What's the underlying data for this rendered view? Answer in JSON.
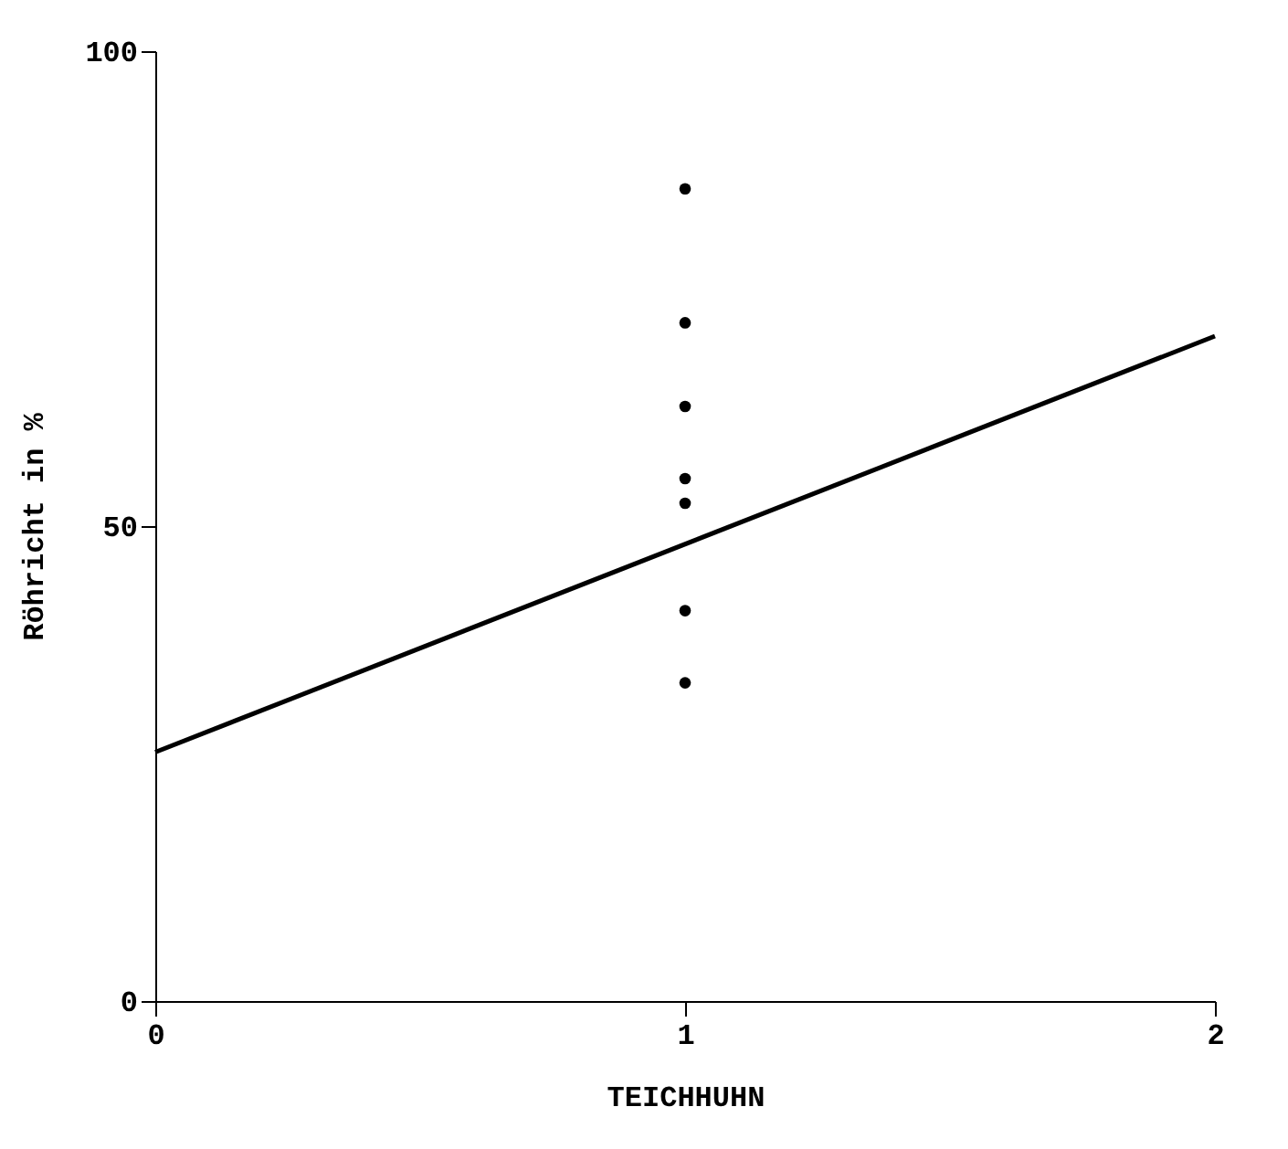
{
  "chart_data": {
    "type": "scatter",
    "xlabel": "TEICHHUHN",
    "ylabel": "Röhricht in %",
    "xlim": [
      0,
      2
    ],
    "ylim": [
      0,
      100
    ],
    "xticks": [
      0,
      1,
      2
    ],
    "yticks": [
      0,
      50,
      100
    ],
    "grid": false,
    "series": [
      {
        "color": "#000000",
        "marker": "circle",
        "x": [
          1,
          1,
          1,
          1,
          1,
          1,
          1
        ],
        "values": [
          85.5,
          71.4,
          62.6,
          55,
          52.4,
          41.1,
          33.5
        ]
      },
      {
        "type": "line",
        "marker": "none",
        "color": "#000000",
        "x": [
          0,
          2
        ],
        "values": [
          26.2,
          70
        ]
      }
    ]
  }
}
